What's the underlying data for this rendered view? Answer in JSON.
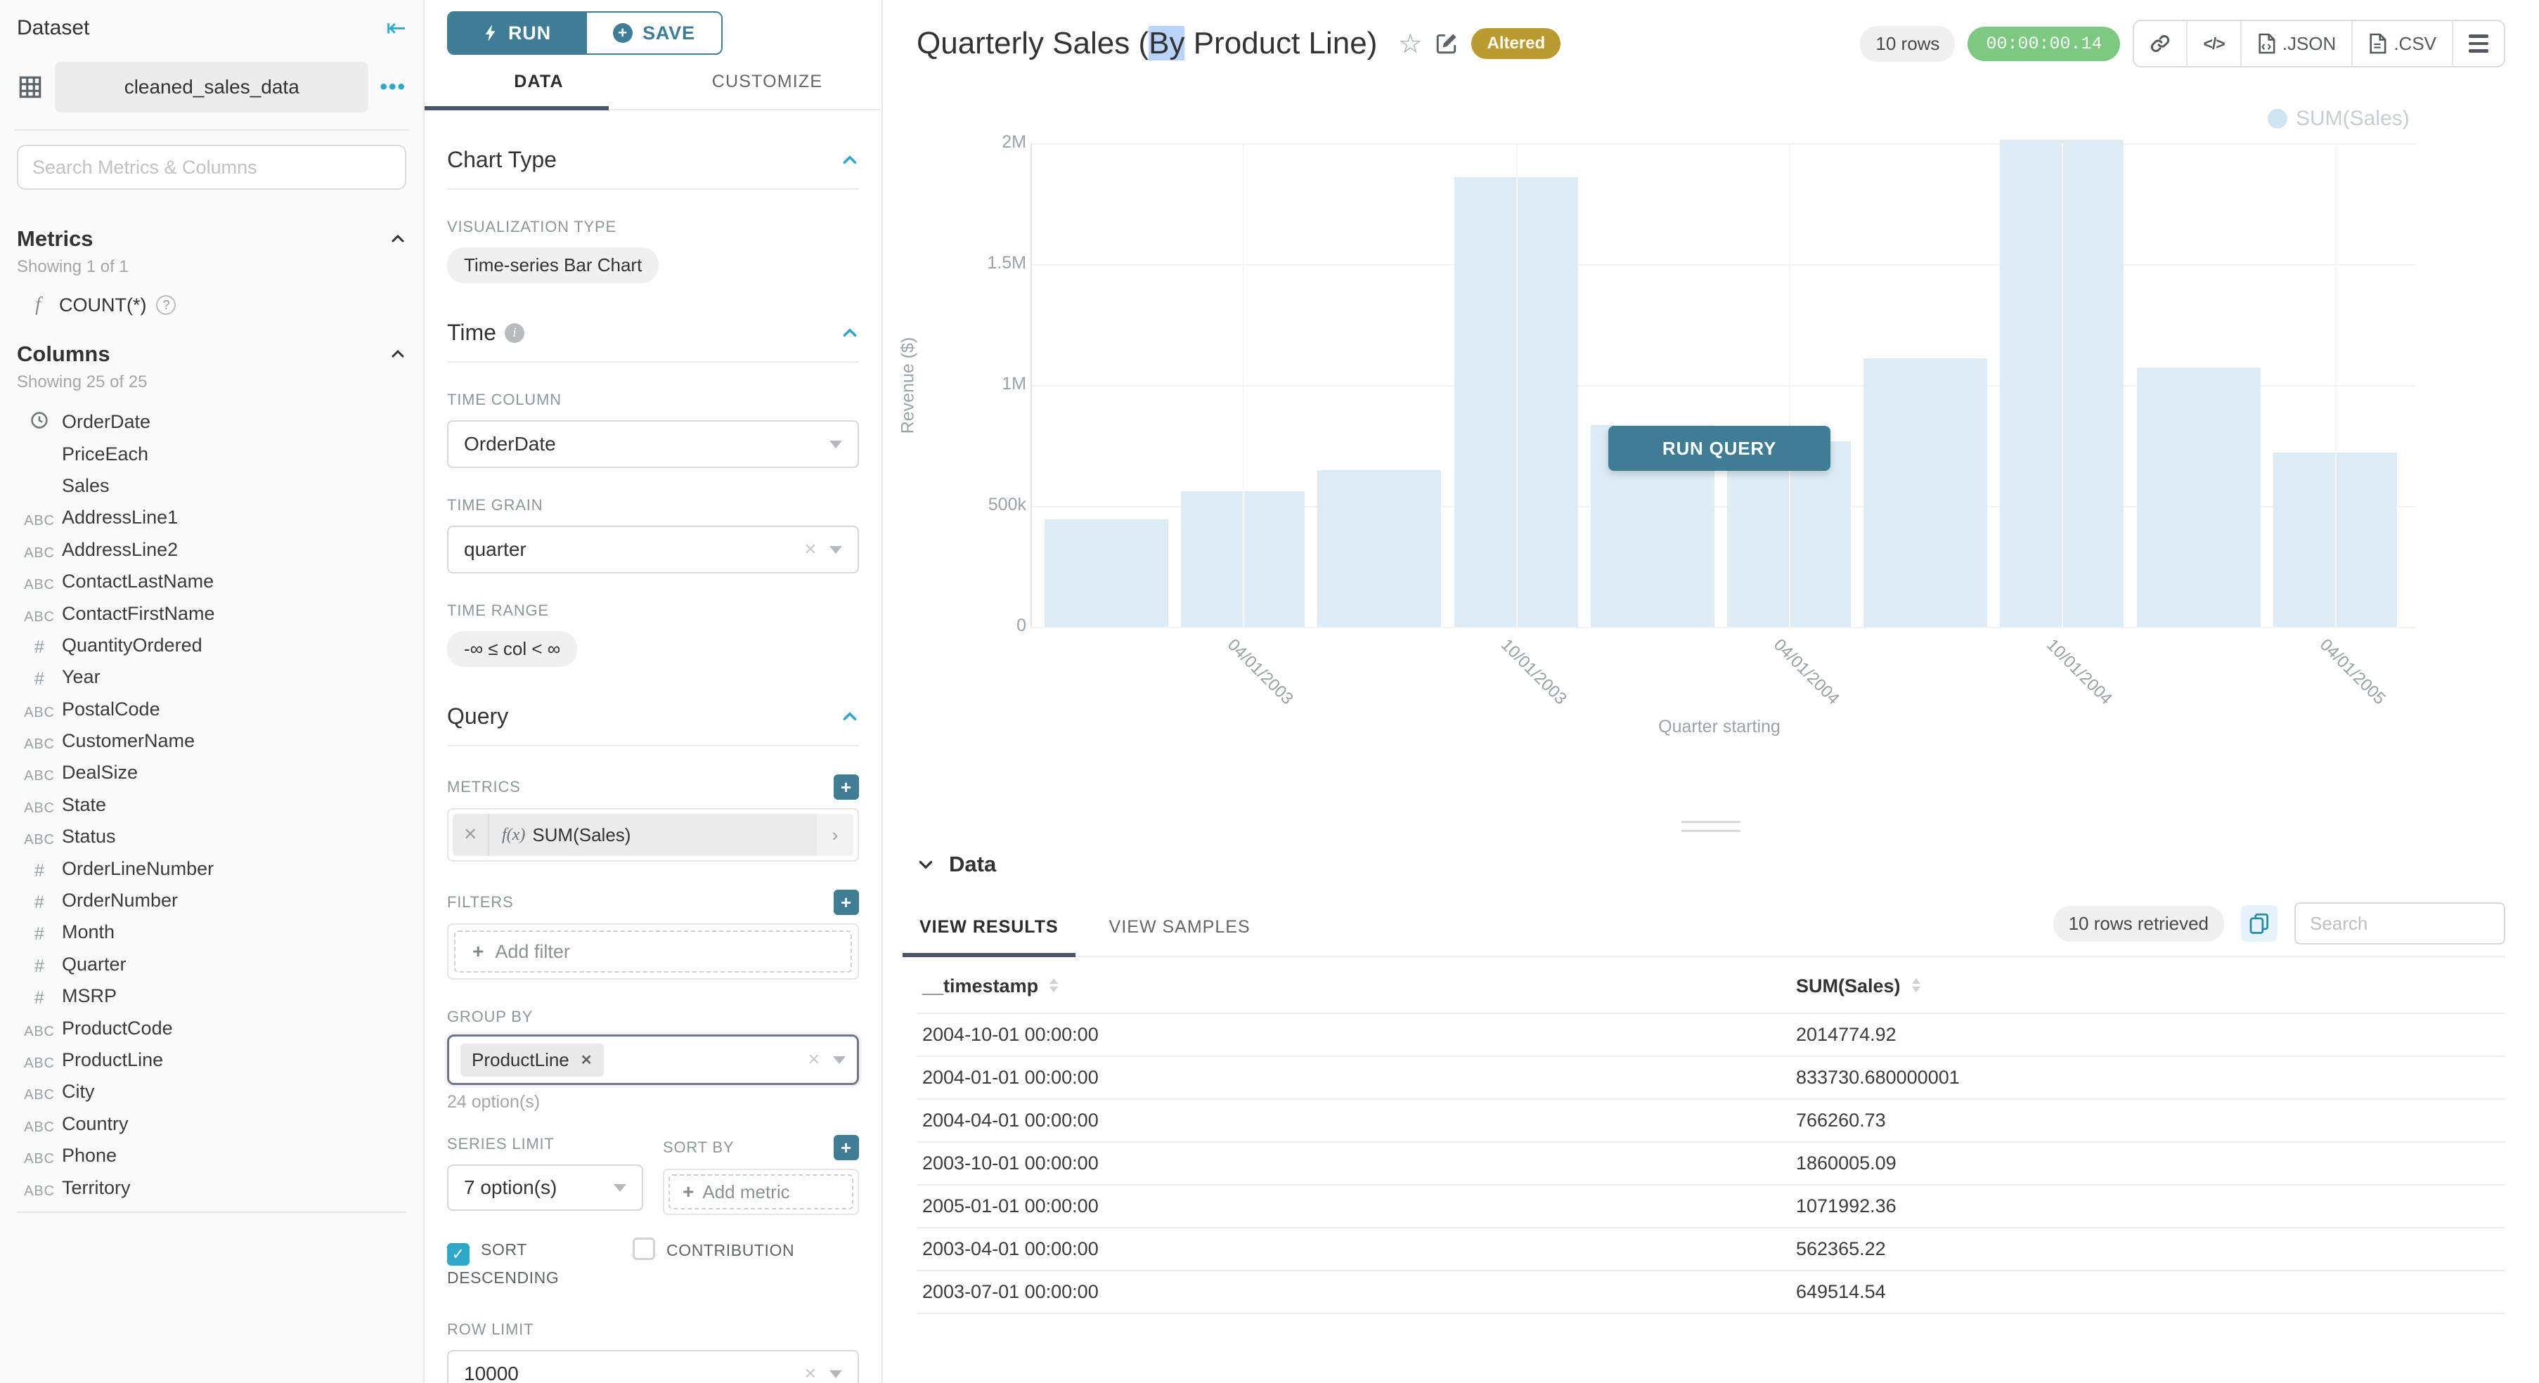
{
  "colors": {
    "accent_teal": "#2ea7c9",
    "button_teal": "#3e7d94",
    "tab_underline": "#4c5566",
    "bar_fill": "#dcebf4",
    "altered_badge": "#bb9b2f",
    "timer_green": "#7dc981",
    "selection_highlight": "#b8d4fb"
  },
  "dataset_panel": {
    "title": "Dataset",
    "dataset_name": "cleaned_sales_data",
    "menu_dots": "•••",
    "search_placeholder": "Search Metrics & Columns",
    "metrics_section": {
      "title": "Metrics",
      "showing": "Showing 1 of 1",
      "metric_fx": "f",
      "metric_name": "COUNT(*)",
      "help_glyph": "?"
    },
    "columns_section": {
      "title": "Columns",
      "showing": "Showing 25 of 25",
      "columns": [
        {
          "type": "time",
          "name": "OrderDate"
        },
        {
          "type": "none",
          "name": "PriceEach"
        },
        {
          "type": "none",
          "name": "Sales"
        },
        {
          "type": "text",
          "name": "AddressLine1"
        },
        {
          "type": "text",
          "name": "AddressLine2"
        },
        {
          "type": "text",
          "name": "ContactLastName"
        },
        {
          "type": "text",
          "name": "ContactFirstName"
        },
        {
          "type": "num",
          "name": "QuantityOrdered"
        },
        {
          "type": "num",
          "name": "Year"
        },
        {
          "type": "text",
          "name": "PostalCode"
        },
        {
          "type": "text",
          "name": "CustomerName"
        },
        {
          "type": "text",
          "name": "DealSize"
        },
        {
          "type": "text",
          "name": "State"
        },
        {
          "type": "text",
          "name": "Status"
        },
        {
          "type": "num",
          "name": "OrderLineNumber"
        },
        {
          "type": "num",
          "name": "OrderNumber"
        },
        {
          "type": "num",
          "name": "Month"
        },
        {
          "type": "num",
          "name": "Quarter"
        },
        {
          "type": "num",
          "name": "MSRP"
        },
        {
          "type": "text",
          "name": "ProductCode"
        },
        {
          "type": "text",
          "name": "ProductLine"
        },
        {
          "type": "text",
          "name": "City"
        },
        {
          "type": "text",
          "name": "Country"
        },
        {
          "type": "text",
          "name": "Phone"
        },
        {
          "type": "text",
          "name": "Territory"
        }
      ]
    }
  },
  "control_panel": {
    "run_label": "RUN",
    "save_label": "SAVE",
    "tab_data": "DATA",
    "tab_customize": "CUSTOMIZE",
    "chart_type": {
      "title": "Chart Type",
      "viz_type_label": "VISUALIZATION TYPE",
      "viz_type": "Time-series Bar Chart"
    },
    "time": {
      "title": "Time",
      "time_column_label": "TIME COLUMN",
      "time_column": "OrderDate",
      "time_grain_label": "TIME GRAIN",
      "time_grain": "quarter",
      "time_range_label": "TIME RANGE",
      "time_range": "-∞ ≤ col < ∞"
    },
    "query": {
      "title": "Query",
      "metrics_label": "METRICS",
      "metric_fx": "f(x)",
      "metric_name": "SUM(Sales)",
      "filters_label": "FILTERS",
      "add_filter": "Add filter",
      "group_by_label": "GROUP BY",
      "group_by_chip": "ProductLine",
      "group_by_options": "24 option(s)",
      "series_limit_label": "SERIES LIMIT",
      "series_limit_value": "7 option(s)",
      "sort_by_label": "SORT BY",
      "add_metric": "Add metric",
      "sort_descending_label": "SORT DESCENDING",
      "contribution_label": "CONTRIBUTION",
      "row_limit_label": "ROW LIMIT",
      "row_limit_value": "10000"
    }
  },
  "header": {
    "title_prefix": "Quarterly Sales (",
    "title_selected": "By",
    "title_suffix": " Product Line)",
    "altered_badge": "Altered",
    "rows_badge": "10 rows",
    "timer": "00:00:00.14",
    "code_glyph": "</>",
    "export_json": ".JSON",
    "export_csv": ".CSV"
  },
  "chart_data": {
    "type": "bar",
    "legend": "SUM(Sales)",
    "legend_position": "top-right",
    "xlabel": "Quarter starting",
    "ylabel": "Revenue ($)",
    "ylim": [
      0,
      2000000
    ],
    "grid": true,
    "x": [
      "2003-01-01",
      "2003-04-01",
      "2003-07-01",
      "2003-10-01",
      "2004-01-01",
      "2004-04-01",
      "2004-07-01",
      "2004-10-01",
      "2005-01-01",
      "2005-04-01"
    ],
    "values": [
      445094,
      562365.22,
      649514.54,
      1860005.09,
      833730.68,
      766260.73,
      1109396,
      2014774.92,
      1071992.36,
      719494
    ],
    "y_tick_labels": [
      "0",
      "500k",
      "1M",
      "1.5M",
      "2M"
    ],
    "y_tick_values": [
      0,
      500000,
      1000000,
      1500000,
      2000000
    ],
    "x_tick_labels": [
      "04/01/2003",
      "10/01/2003",
      "04/01/2004",
      "10/01/2004",
      "04/01/2005"
    ],
    "run_query_label": "RUN QUERY"
  },
  "data_panel": {
    "title": "Data",
    "tab_results": "VIEW RESULTS",
    "tab_samples": "VIEW SAMPLES",
    "rows_retrieved": "10 rows retrieved",
    "search_placeholder": "Search",
    "table": {
      "columns": [
        "__timestamp",
        "SUM(Sales)"
      ],
      "rows": [
        [
          "2004-10-01 00:00:00",
          "2014774.92"
        ],
        [
          "2004-01-01 00:00:00",
          "833730.680000001"
        ],
        [
          "2004-04-01 00:00:00",
          "766260.73"
        ],
        [
          "2003-10-01 00:00:00",
          "1860005.09"
        ],
        [
          "2005-01-01 00:00:00",
          "1071992.36"
        ],
        [
          "2003-04-01 00:00:00",
          "562365.22"
        ],
        [
          "2003-07-01 00:00:00",
          "649514.54"
        ]
      ]
    }
  }
}
